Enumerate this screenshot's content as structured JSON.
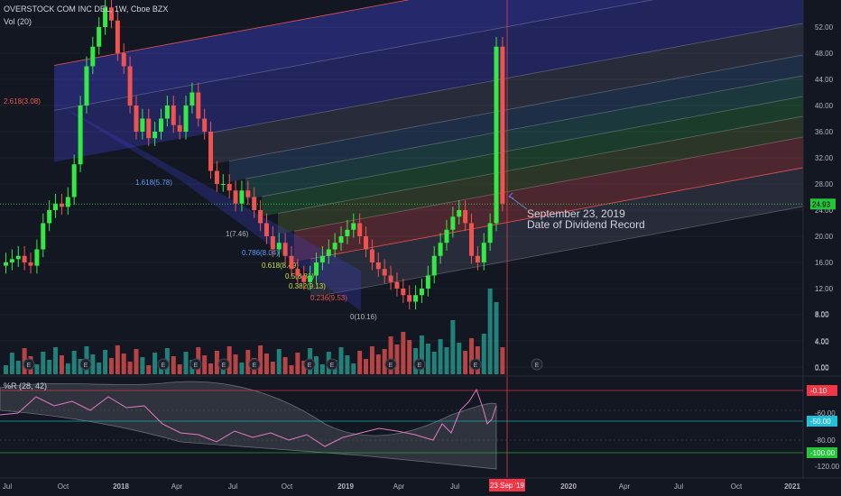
{
  "header": {
    "title": "OVERSTOCK COM INC DEL, 1W, Cboe BZX",
    "volume_label": "Vol (20)",
    "oscillator_label": "%R (28, 42)"
  },
  "annotation": {
    "line1": "September 23, 2019",
    "line2": "Date of Dividend Record"
  },
  "price_badge": "24.93",
  "date_badge": "23 Sep '19",
  "colors": {
    "up": "#26a69a",
    "down": "#ef5350",
    "bull_candle": "#33ea44",
    "fib_outer": "#3d3ec8",
    "fib_red": "#e65454",
    "fib_green": "#3bc24a",
    "fib_blue": "#4a8cd8",
    "wr_line": "#e27ac2",
    "badge_red": "#f23645",
    "badge_cyan": "#22c0d8",
    "badge_green": "#25c43a"
  },
  "chart_data": [
    {
      "type": "candlestick",
      "title": "OVERSTOCK COM INC DEL, 1W, Cboe BZX",
      "x_ticks": [
        "Jul",
        "Oct",
        "2018",
        "Apr",
        "Jul",
        "Oct",
        "2019",
        "Apr",
        "Jul",
        "23 Sep '19",
        "2020",
        "Apr",
        "Jul",
        "Oct",
        "2021"
      ],
      "y_ticks": [
        0,
        4,
        8,
        12,
        16,
        20,
        24,
        28,
        32,
        36,
        40,
        44,
        48,
        52
      ],
      "ylim": [
        -1,
        54
      ],
      "last_price": 24.93,
      "fib_labels": [
        {
          "label": "2.618(3.08)",
          "color": "#ef5350"
        },
        {
          "label": "1.618(5.78)",
          "color": "#5b9cf6"
        },
        {
          "label": "1(7.46)",
          "color": "#b2b5be"
        },
        {
          "label": "0.786(8.04)",
          "color": "#5b9cf6"
        },
        {
          "label": "0.618(8.49)",
          "color": "#c7e04a"
        },
        {
          "label": "0.5(8.81)",
          "color": "#c7e04a"
        },
        {
          "label": "0.382(9.13)",
          "color": "#c7e04a"
        },
        {
          "label": "0.236(9.53)",
          "color": "#ef5350"
        },
        {
          "label": "0(10.16)",
          "color": "#b2b5be"
        }
      ],
      "approx_weekly_close": [
        16,
        16.5,
        17,
        16,
        15.5,
        18,
        22,
        24,
        25,
        24.5,
        26,
        31,
        40,
        46,
        49,
        52,
        55,
        53,
        48,
        46,
        40,
        36,
        38,
        35,
        36,
        38,
        40,
        37,
        36,
        40,
        42,
        38,
        36,
        30,
        28,
        28,
        27,
        25,
        27,
        26,
        24,
        22,
        20,
        18,
        19,
        17,
        15,
        14,
        13,
        14,
        16,
        17,
        18,
        19,
        20,
        21,
        22,
        20,
        18,
        16,
        15,
        14,
        13,
        12,
        11,
        10,
        11,
        12,
        14,
        17,
        19,
        21,
        23,
        24,
        22,
        17,
        16,
        19,
        22,
        49,
        25
      ]
    },
    {
      "type": "bar",
      "title": "Vol (20)",
      "x_ticks": [
        "Jul",
        "Oct",
        "2018",
        "Apr",
        "Jul",
        "Oct",
        "2019",
        "Apr",
        "Jul",
        "23 Sep '19",
        "2020",
        "Apr",
        "Jul",
        "Oct",
        "2021"
      ],
      "y_ticks": [
        "0.00",
        "4.00",
        "8.00"
      ],
      "earnings_markers": [
        "E",
        "E",
        "E",
        "E",
        "E",
        "E",
        "E",
        "E",
        "E",
        "E",
        "E",
        "E",
        "E"
      ]
    },
    {
      "type": "line",
      "title": "%R (28, 42)",
      "y_ticks": [
        "-60.00",
        "-80.00",
        "-120.00"
      ],
      "levels": [
        {
          "value": "-0.10",
          "color": "#f23645"
        },
        {
          "value": "-50.00",
          "color": "#22c0d8"
        },
        {
          "value": "-100.00",
          "color": "#25c43a"
        }
      ]
    }
  ]
}
